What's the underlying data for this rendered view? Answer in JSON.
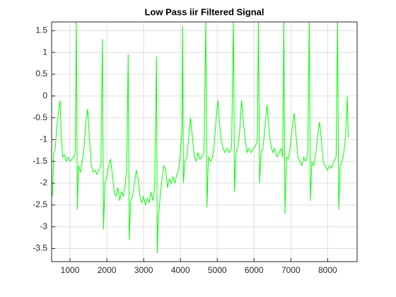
{
  "chart_data": {
    "type": "line",
    "title": "Low Pass iir Filtered Signal",
    "color": "#00ff00",
    "grid": true,
    "xlim": [
      500,
      8800
    ],
    "xticks": [
      1000,
      2000,
      3000,
      4000,
      5000,
      6000,
      7000,
      8000
    ],
    "ylim": [
      -3.8,
      1.7
    ],
    "yticks": [
      -3.5,
      -3,
      -2.5,
      -2,
      -1.5,
      -1,
      -0.5,
      0,
      0.5,
      1,
      1.5
    ],
    "x": [
      520,
      560,
      600,
      640,
      730,
      760,
      800,
      850,
      900,
      950,
      1000,
      1050,
      1100,
      1140,
      1170,
      1200,
      1230,
      1280,
      1330,
      1380,
      1430,
      1480,
      1530,
      1580,
      1630,
      1680,
      1730,
      1780,
      1840,
      1880,
      1910,
      1950,
      2000,
      2050,
      2100,
      2150,
      2200,
      2250,
      2300,
      2350,
      2400,
      2450,
      2500,
      2540,
      2580,
      2610,
      2650,
      2700,
      2750,
      2800,
      2850,
      2900,
      2950,
      3000,
      3050,
      3100,
      3150,
      3200,
      3250,
      3300,
      3350,
      3370,
      3400,
      3450,
      3500,
      3550,
      3600,
      3650,
      3700,
      3750,
      3800,
      3850,
      3900,
      3950,
      4000,
      4040,
      4060,
      4080,
      4120,
      4180,
      4230,
      4270,
      4320,
      4380,
      4430,
      4480,
      4530,
      4580,
      4640,
      4690,
      4720,
      4760,
      4820,
      4870,
      4920,
      4980,
      5020,
      5060,
      5110,
      5160,
      5210,
      5270,
      5330,
      5390,
      5440,
      5470,
      5510,
      5560,
      5610,
      5660,
      5710,
      5760,
      5810,
      5860,
      5920,
      5980,
      6040,
      6090,
      6120,
      6150,
      6190,
      6240,
      6290,
      6350,
      6400,
      6450,
      6510,
      6560,
      6620,
      6680,
      6740,
      6780,
      6810,
      6840,
      6880,
      6930,
      6980,
      7040,
      7090,
      7140,
      7190,
      7240,
      7300,
      7350,
      7400,
      7460,
      7500,
      7530,
      7570,
      7620,
      7680,
      7730,
      7780,
      7830,
      7880,
      7930,
      7990,
      8050,
      8110,
      8170,
      8230,
      8270,
      8300,
      8340,
      8390,
      8440,
      8490,
      8530,
      8560
    ],
    "values": [
      -2.3,
      -1.3,
      -1.2,
      -0.7,
      -0.1,
      -0.9,
      -1.4,
      -1.35,
      -1.5,
      -1.4,
      -1.5,
      -1.45,
      -1.4,
      -1.3,
      1.75,
      -2.6,
      -1.6,
      -1.75,
      -1.5,
      -1.2,
      -0.6,
      -0.3,
      -1.0,
      -1.6,
      -1.75,
      -1.7,
      -1.8,
      -1.7,
      -1.6,
      1.3,
      -3.05,
      -2.0,
      -1.85,
      -1.6,
      -1.45,
      -1.8,
      -2.2,
      -2.3,
      -2.1,
      -2.4,
      -2.2,
      -2.3,
      -2.0,
      -1.7,
      0.95,
      -3.3,
      -2.4,
      -2.3,
      -2.0,
      -1.7,
      -1.9,
      -2.3,
      -2.45,
      -2.3,
      -2.5,
      -2.35,
      -2.45,
      -2.2,
      -2.4,
      -2.1,
      0.9,
      -3.6,
      -2.8,
      -2.3,
      -1.9,
      -1.6,
      -1.7,
      -2.1,
      -1.9,
      -2.0,
      -1.85,
      -2.0,
      -1.8,
      -1.7,
      -1.3,
      -0.8,
      1.6,
      -2.0,
      -1.5,
      -1.4,
      -0.9,
      -0.5,
      -0.9,
      -1.4,
      -1.5,
      -1.3,
      -1.45,
      -1.4,
      -1.3,
      1.75,
      -2.55,
      -1.4,
      -1.5,
      -1.4,
      -1.1,
      -0.4,
      -0.1,
      -0.6,
      -1.0,
      -1.2,
      -1.3,
      -1.2,
      -1.3,
      -1.2,
      1.75,
      -2.2,
      -1.3,
      -1.2,
      -0.8,
      -0.1,
      -0.6,
      -1.0,
      -1.3,
      -1.2,
      -1.3,
      -1.2,
      -1.15,
      -1.0,
      1.75,
      -2.0,
      -1.3,
      -1.2,
      -0.8,
      -0.2,
      -0.7,
      -1.1,
      -1.3,
      -1.2,
      -1.4,
      -1.3,
      -1.2,
      -1.4,
      1.75,
      -2.7,
      -1.4,
      -1.45,
      -1.2,
      -0.7,
      -0.4,
      -0.9,
      -1.4,
      -1.5,
      -1.6,
      -1.4,
      -1.5,
      -1.35,
      1.75,
      -2.4,
      -1.5,
      -1.6,
      -1.3,
      -0.9,
      -0.6,
      -1.0,
      -1.5,
      -1.6,
      -1.7,
      -1.6,
      -1.65,
      -1.5,
      -1.4,
      1.75,
      -2.6,
      -1.6,
      -1.5,
      -1.3,
      -0.9,
      0.0,
      -0.95
    ]
  }
}
